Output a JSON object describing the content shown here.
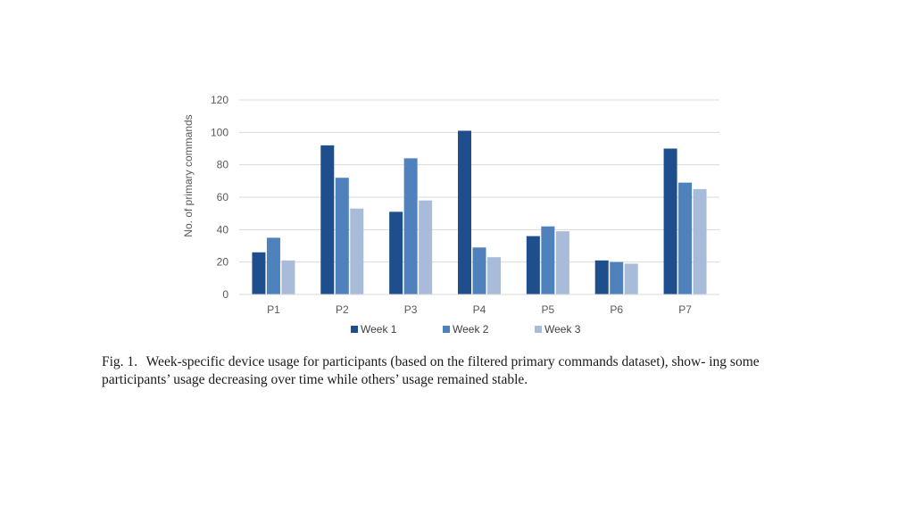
{
  "chart_data": {
    "type": "bar",
    "title": "",
    "xlabel": "",
    "ylabel": "No. of primary commands",
    "categories": [
      "P1",
      "P2",
      "P3",
      "P4",
      "P5",
      "P6",
      "P7"
    ],
    "ylim": [
      0,
      120
    ],
    "yticks": [
      0,
      20,
      40,
      60,
      80,
      100,
      120
    ],
    "grid": true,
    "legend_position": "bottom",
    "series": [
      {
        "name": "Week 1",
        "color": "#1f4e8c",
        "values": [
          26,
          92,
          51,
          101,
          36,
          21,
          90
        ]
      },
      {
        "name": "Week 2",
        "color": "#4f81bd",
        "values": [
          35,
          72,
          84,
          29,
          42,
          20,
          69
        ]
      },
      {
        "name": "Week 3",
        "color": "#a8bbd9",
        "values": [
          21,
          53,
          58,
          23,
          39,
          19,
          65
        ]
      }
    ]
  },
  "caption": {
    "label": "Fig. 1.",
    "text": "Week-specific device usage for participants (based on the filtered primary commands dataset), show- ing some participants’ usage decreasing over time while others’ usage remained stable."
  }
}
